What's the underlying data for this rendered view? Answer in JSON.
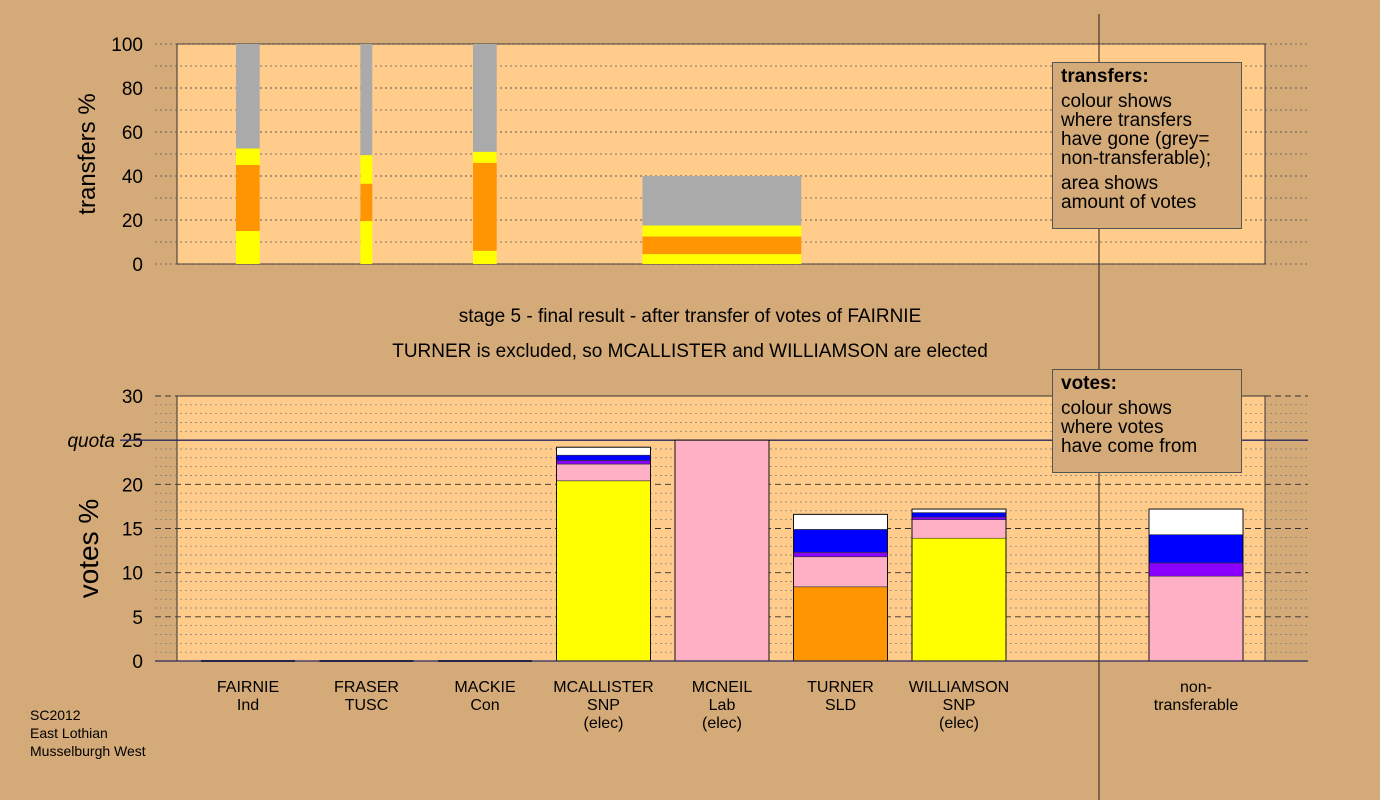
{
  "headings": {
    "stage_line": "stage 5 - final result - after transfer of votes of FAIRNIE",
    "result_line": "TURNER is excluded, so MCALLISTER and WILLIAMSON are elected"
  },
  "footnote": [
    "SC2012",
    "East Lothian",
    "Musselburgh West"
  ],
  "legends": {
    "transfers": {
      "title": "transfers:",
      "para1": [
        "colour shows",
        "where transfers",
        "have gone (grey=",
        "non-transferable);"
      ],
      "para2": [
        "area shows",
        "amount of votes"
      ]
    },
    "votes": {
      "title": "votes:",
      "para1": [
        "colour shows",
        "where votes",
        "have come from"
      ]
    }
  },
  "colors": {
    "background": "#d4aa78",
    "plot_bg": "#ffcc8c",
    "yellow": "#ffff00",
    "orange": "#ff9500",
    "grey": "#aaaaaa",
    "pink": "#ffb0c4",
    "purple": "#8b00ff",
    "blue": "#0000ff",
    "white": "#ffffff",
    "quota_line": "#2a2a60"
  },
  "chart_data": [
    {
      "type": "bar",
      "name": "transfers",
      "ylabel": "transfers %",
      "ylim": [
        0,
        100
      ],
      "yticks": [
        0,
        20,
        40,
        60,
        80,
        100
      ],
      "bars": [
        {
          "x0": 0.8,
          "x1": 1.0,
          "segments": [
            {
              "color": "yellow",
              "value": 15
            },
            {
              "color": "orange",
              "value": 30
            },
            {
              "color": "yellow",
              "value": 7.5
            },
            {
              "color": "grey",
              "value": 47.5
            }
          ]
        },
        {
          "x0": 1.85,
          "x1": 1.95,
          "segments": [
            {
              "color": "yellow",
              "value": 19.5
            },
            {
              "color": "orange",
              "value": 17
            },
            {
              "color": "yellow",
              "value": 13
            },
            {
              "color": "grey",
              "value": 50.5
            }
          ]
        },
        {
          "x0": 2.8,
          "x1": 3.0,
          "segments": [
            {
              "color": "yellow",
              "value": 6
            },
            {
              "color": "orange",
              "value": 40
            },
            {
              "color": "yellow",
              "value": 5
            },
            {
              "color": "grey",
              "value": 49
            }
          ]
        },
        {
          "x0": 4.23,
          "x1": 5.57,
          "segments": [
            {
              "color": "yellow",
              "value": 4.5
            },
            {
              "color": "orange",
              "value": 8
            },
            {
              "color": "yellow",
              "value": 5
            },
            {
              "color": "grey",
              "value": 22.5
            }
          ]
        }
      ]
    },
    {
      "type": "bar",
      "name": "votes",
      "ylabel": "votes %",
      "ylim": [
        0,
        30
      ],
      "yticks": [
        0,
        5,
        10,
        15,
        20,
        25,
        30
      ],
      "quota": {
        "label": "quota",
        "value": 25
      },
      "categories": [
        {
          "lines": [
            "FAIRNIE",
            "Ind"
          ],
          "segments": []
        },
        {
          "lines": [
            "FRASER",
            "TUSC"
          ],
          "segments": []
        },
        {
          "lines": [
            "MACKIE",
            "Con"
          ],
          "segments": []
        },
        {
          "lines": [
            "MCALLISTER",
            "SNP",
            "(elec)"
          ],
          "segments": [
            {
              "color": "yellow",
              "value": 20.4
            },
            {
              "color": "pink",
              "value": 1.9
            },
            {
              "color": "purple",
              "value": 0.4
            },
            {
              "color": "blue",
              "value": 0.6
            },
            {
              "color": "white",
              "value": 0.9
            }
          ]
        },
        {
          "lines": [
            "MCNEIL",
            "Lab",
            "(elec)"
          ],
          "segments": [
            {
              "color": "pink",
              "value": 25.0
            }
          ]
        },
        {
          "lines": [
            "TURNER",
            "SLD"
          ],
          "segments": [
            {
              "color": "orange",
              "value": 8.4
            },
            {
              "color": "pink",
              "value": 3.4
            },
            {
              "color": "purple",
              "value": 0.5
            },
            {
              "color": "blue",
              "value": 2.6
            },
            {
              "color": "white",
              "value": 1.7
            }
          ]
        },
        {
          "lines": [
            "WILLIAMSON",
            "SNP",
            "(elec)"
          ],
          "segments": [
            {
              "color": "yellow",
              "value": 13.9
            },
            {
              "color": "pink",
              "value": 2.1
            },
            {
              "color": "purple",
              "value": 0.3
            },
            {
              "color": "blue",
              "value": 0.5
            },
            {
              "color": "white",
              "value": 0.4
            }
          ]
        },
        {
          "lines": [
            "",
            ""
          ],
          "segments": []
        },
        {
          "lines": [
            "non-",
            "transferable"
          ],
          "segments": [
            {
              "color": "pink",
              "value": 9.6
            },
            {
              "color": "purple",
              "value": 1.5
            },
            {
              "color": "blue",
              "value": 3.2
            },
            {
              "color": "white",
              "value": 2.9
            }
          ]
        }
      ]
    }
  ]
}
